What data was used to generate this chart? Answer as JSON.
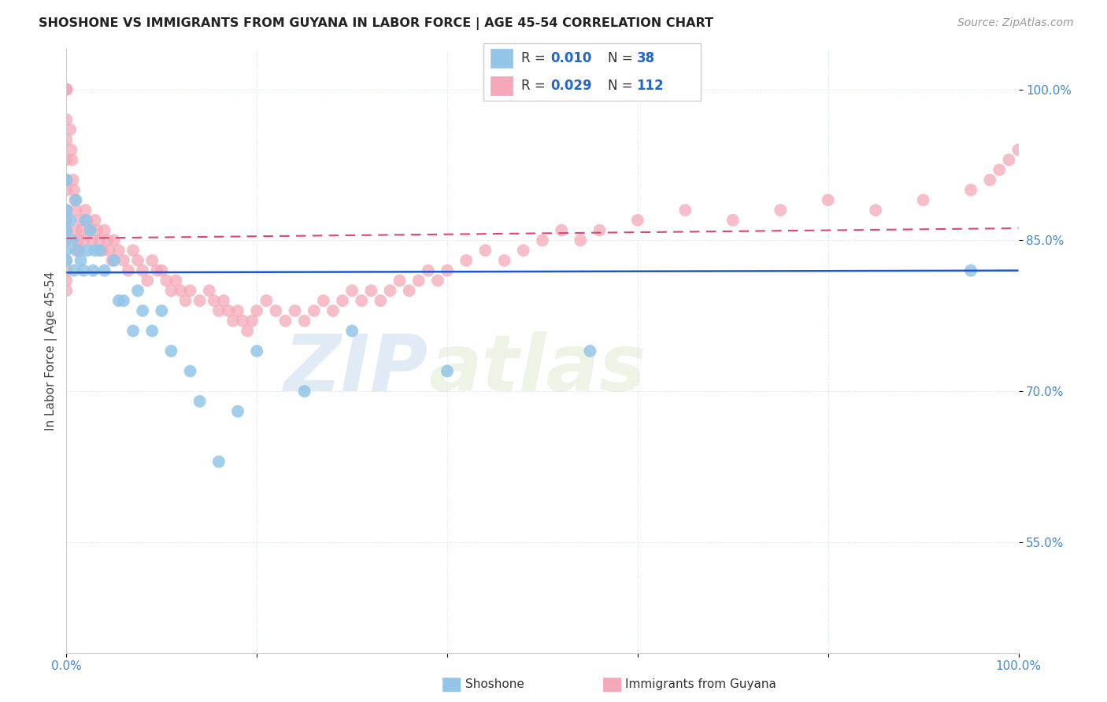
{
  "title": "SHOSHONE VS IMMIGRANTS FROM GUYANA IN LABOR FORCE | AGE 45-54 CORRELATION CHART",
  "source": "Source: ZipAtlas.com",
  "ylabel": "In Labor Force | Age 45-54",
  "xlim": [
    0.0,
    1.0
  ],
  "ylim": [
    0.44,
    1.04
  ],
  "x_ticks": [
    0.0,
    0.2,
    0.4,
    0.6,
    0.8,
    1.0
  ],
  "x_tick_labels": [
    "0.0%",
    "",
    "",
    "",
    "",
    "100.0%"
  ],
  "y_ticks": [
    0.55,
    0.7,
    0.85,
    1.0
  ],
  "y_tick_labels": [
    "55.0%",
    "70.0%",
    "85.0%",
    "100.0%"
  ],
  "shoshone_color": "#92C5E8",
  "guyana_color": "#F4A8B8",
  "shoshone_line_color": "#2255CC",
  "guyana_line_color": "#DD4477",
  "legend_R1": "0.010",
  "legend_N1": "38",
  "legend_R2": "0.029",
  "legend_N2": "112",
  "watermark_zip": "ZIP",
  "watermark_atlas": "atlas",
  "blue_line_y0": 0.818,
  "blue_line_y1": 0.82,
  "pink_line_y0": 0.852,
  "pink_line_y1": 0.862,
  "shoshone_x": [
    0.0,
    0.0,
    0.0,
    0.0,
    0.0,
    0.004,
    0.006,
    0.008,
    0.01,
    0.012,
    0.015,
    0.018,
    0.02,
    0.022,
    0.025,
    0.028,
    0.03,
    0.035,
    0.04,
    0.05,
    0.055,
    0.06,
    0.07,
    0.075,
    0.08,
    0.09,
    0.1,
    0.11,
    0.13,
    0.14,
    0.16,
    0.18,
    0.2,
    0.25,
    0.3,
    0.4,
    0.55,
    0.95
  ],
  "shoshone_y": [
    0.84,
    0.88,
    0.91,
    0.86,
    0.83,
    0.87,
    0.85,
    0.82,
    0.89,
    0.84,
    0.83,
    0.82,
    0.87,
    0.84,
    0.86,
    0.82,
    0.84,
    0.84,
    0.82,
    0.83,
    0.79,
    0.79,
    0.76,
    0.8,
    0.78,
    0.76,
    0.78,
    0.74,
    0.72,
    0.69,
    0.63,
    0.68,
    0.74,
    0.7,
    0.76,
    0.72,
    0.74,
    0.82
  ],
  "guyana_x": [
    0.0,
    0.0,
    0.0,
    0.0,
    0.0,
    0.0,
    0.0,
    0.0,
    0.0,
    0.0,
    0.0,
    0.0,
    0.0,
    0.0,
    0.0,
    0.004,
    0.005,
    0.006,
    0.007,
    0.008,
    0.009,
    0.01,
    0.01,
    0.012,
    0.013,
    0.015,
    0.016,
    0.018,
    0.02,
    0.022,
    0.025,
    0.027,
    0.03,
    0.032,
    0.035,
    0.038,
    0.04,
    0.043,
    0.045,
    0.048,
    0.05,
    0.055,
    0.06,
    0.065,
    0.07,
    0.075,
    0.08,
    0.085,
    0.09,
    0.095,
    0.1,
    0.105,
    0.11,
    0.115,
    0.12,
    0.125,
    0.13,
    0.14,
    0.15,
    0.155,
    0.16,
    0.165,
    0.17,
    0.175,
    0.18,
    0.185,
    0.19,
    0.195,
    0.2,
    0.21,
    0.22,
    0.23,
    0.24,
    0.25,
    0.26,
    0.27,
    0.28,
    0.29,
    0.3,
    0.31,
    0.32,
    0.33,
    0.34,
    0.35,
    0.36,
    0.37,
    0.38,
    0.39,
    0.4,
    0.42,
    0.44,
    0.46,
    0.48,
    0.5,
    0.52,
    0.54,
    0.56,
    0.6,
    0.65,
    0.7,
    0.75,
    0.8,
    0.85,
    0.9,
    0.95,
    0.97,
    0.98,
    0.99,
    1.0,
    0.0,
    0.0,
    0.01
  ],
  "guyana_y": [
    1.0,
    1.0,
    1.0,
    0.97,
    0.95,
    0.93,
    0.91,
    0.9,
    0.88,
    0.86,
    0.85,
    0.83,
    0.82,
    0.81,
    0.8,
    0.96,
    0.94,
    0.93,
    0.91,
    0.9,
    0.89,
    0.88,
    0.86,
    0.85,
    0.84,
    0.87,
    0.86,
    0.85,
    0.88,
    0.87,
    0.86,
    0.85,
    0.87,
    0.86,
    0.85,
    0.84,
    0.86,
    0.85,
    0.84,
    0.83,
    0.85,
    0.84,
    0.83,
    0.82,
    0.84,
    0.83,
    0.82,
    0.81,
    0.83,
    0.82,
    0.82,
    0.81,
    0.8,
    0.81,
    0.8,
    0.79,
    0.8,
    0.79,
    0.8,
    0.79,
    0.78,
    0.79,
    0.78,
    0.77,
    0.78,
    0.77,
    0.76,
    0.77,
    0.78,
    0.79,
    0.78,
    0.77,
    0.78,
    0.77,
    0.78,
    0.79,
    0.78,
    0.79,
    0.8,
    0.79,
    0.8,
    0.79,
    0.8,
    0.81,
    0.8,
    0.81,
    0.82,
    0.81,
    0.82,
    0.83,
    0.84,
    0.83,
    0.84,
    0.85,
    0.86,
    0.85,
    0.86,
    0.87,
    0.88,
    0.87,
    0.88,
    0.89,
    0.88,
    0.89,
    0.9,
    0.91,
    0.92,
    0.93,
    0.94,
    0.91,
    0.87,
    0.84
  ]
}
